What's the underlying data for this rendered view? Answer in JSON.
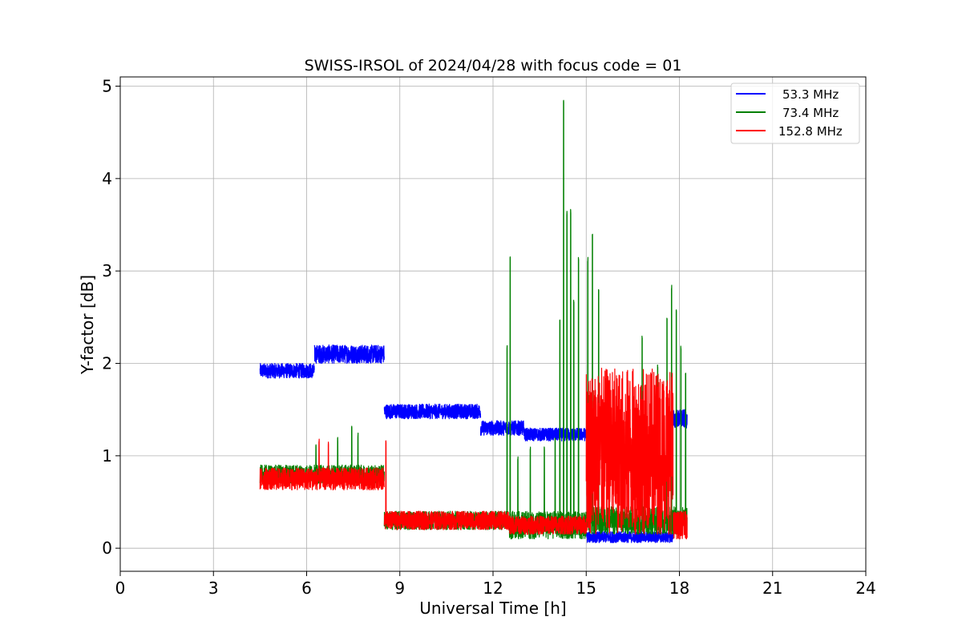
{
  "chart_data": {
    "type": "line",
    "title": "SWISS-IRSOL of 2024/04/28 with focus code = 01",
    "xlabel": "Universal Time [h]",
    "ylabel": "Y-factor [dB]",
    "xlim": [
      0,
      24
    ],
    "ylim": [
      -0.25,
      5.1
    ],
    "xticks": [
      0,
      3,
      6,
      9,
      12,
      15,
      18,
      21,
      24
    ],
    "xtick_labels": [
      "0",
      "3",
      "6",
      "9",
      "12",
      "15",
      "18",
      "21",
      "24"
    ],
    "yticks": [
      0,
      1,
      2,
      3,
      4,
      5
    ],
    "ytick_labels": [
      "0",
      "1",
      "2",
      "3",
      "4",
      "5"
    ],
    "grid": true,
    "legend_position": "top-right",
    "series": [
      {
        "name": "53.3 MHz",
        "color": "#0000ff",
        "note_segments": "noisy band, approximate center levels and spread",
        "segments": [
          {
            "x0": 4.5,
            "x1": 6.25,
            "center": 1.92,
            "spread": 0.08
          },
          {
            "x0": 6.25,
            "x1": 8.5,
            "center": 2.1,
            "spread": 0.1
          },
          {
            "x0": 8.5,
            "x1": 11.6,
            "center": 1.48,
            "spread": 0.08
          },
          {
            "x0": 11.6,
            "x1": 13.0,
            "center": 1.3,
            "spread": 0.08
          },
          {
            "x0": 13.0,
            "x1": 15.0,
            "center": 1.23,
            "spread": 0.07
          },
          {
            "x0": 15.0,
            "x1": 17.8,
            "center": 0.12,
            "spread": 0.06
          },
          {
            "x0": 17.8,
            "x1": 18.25,
            "center": 1.4,
            "spread": 0.1
          }
        ]
      },
      {
        "name": "73.4 MHz",
        "color": "#008000",
        "segments": [
          {
            "x0": 4.5,
            "x1": 8.5,
            "center": 0.8,
            "spread": 0.1
          },
          {
            "x0": 8.5,
            "x1": 12.5,
            "center": 0.3,
            "spread": 0.1
          },
          {
            "x0": 12.5,
            "x1": 15.0,
            "center": 0.25,
            "spread": 0.15
          },
          {
            "x0": 15.0,
            "x1": 18.25,
            "center": 0.3,
            "spread": 0.15
          }
        ],
        "peaks": [
          {
            "x": 6.3,
            "y": 1.15
          },
          {
            "x": 7.0,
            "y": 1.2
          },
          {
            "x": 7.45,
            "y": 1.32
          },
          {
            "x": 7.65,
            "y": 1.25
          },
          {
            "x": 12.45,
            "y": 2.2
          },
          {
            "x": 12.55,
            "y": 3.17
          },
          {
            "x": 12.8,
            "y": 1.0
          },
          {
            "x": 13.2,
            "y": 1.1
          },
          {
            "x": 13.65,
            "y": 1.1
          },
          {
            "x": 14.0,
            "y": 1.2
          },
          {
            "x": 14.15,
            "y": 2.5
          },
          {
            "x": 14.27,
            "y": 4.85
          },
          {
            "x": 14.38,
            "y": 3.65
          },
          {
            "x": 14.5,
            "y": 3.67
          },
          {
            "x": 14.6,
            "y": 2.7
          },
          {
            "x": 14.75,
            "y": 3.15
          },
          {
            "x": 15.05,
            "y": 3.15
          },
          {
            "x": 15.2,
            "y": 3.4
          },
          {
            "x": 15.4,
            "y": 2.8
          },
          {
            "x": 16.8,
            "y": 2.3
          },
          {
            "x": 17.3,
            "y": 2.0
          },
          {
            "x": 17.6,
            "y": 2.5
          },
          {
            "x": 17.75,
            "y": 2.85
          },
          {
            "x": 17.9,
            "y": 2.6
          },
          {
            "x": 18.05,
            "y": 2.2
          },
          {
            "x": 18.2,
            "y": 1.9
          }
        ]
      },
      {
        "name": "152.8 MHz",
        "color": "#ff0000",
        "segments": [
          {
            "x0": 4.5,
            "x1": 8.5,
            "center": 0.75,
            "spread": 0.12
          },
          {
            "x0": 8.5,
            "x1": 12.5,
            "center": 0.3,
            "spread": 0.1
          },
          {
            "x0": 12.5,
            "x1": 15.0,
            "center": 0.25,
            "spread": 0.1
          },
          {
            "x0": 15.0,
            "x1": 17.8,
            "center": 1.05,
            "spread": 0.9
          },
          {
            "x0": 17.8,
            "x1": 18.25,
            "center": 0.25,
            "spread": 0.15
          }
        ],
        "peaks": [
          {
            "x": 6.4,
            "y": 1.2
          },
          {
            "x": 6.7,
            "y": 1.15
          },
          {
            "x": 8.55,
            "y": 1.18
          }
        ]
      }
    ]
  }
}
